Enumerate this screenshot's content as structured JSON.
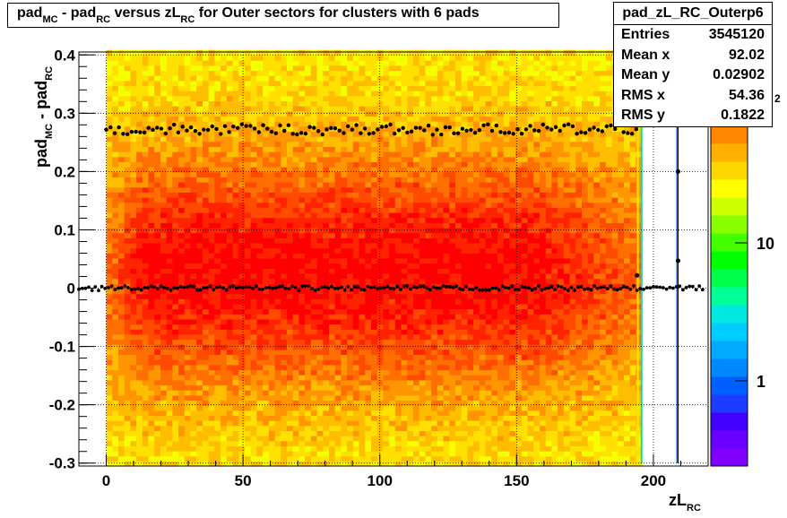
{
  "title": {
    "p1": "pad",
    "s1": "MC",
    "p2": " - pad",
    "s2": "RC",
    "p3": " versus zL",
    "s3": "RC",
    "p4": " for Outer sectors for clusters with 6 pads"
  },
  "stats": {
    "name": "pad_zL_RC_Outerp6",
    "rows": [
      {
        "label": "Entries",
        "value": "3545120"
      },
      {
        "label": "Mean x",
        "value": "92.02"
      },
      {
        "label": "Mean y",
        "value": "0.02902"
      },
      {
        "label": "RMS x",
        "value": "54.36"
      },
      {
        "label": "RMS y",
        "value": "0.1822"
      }
    ]
  },
  "ylabel": {
    "p1": "pad",
    "s1": "MC",
    "p2": " - pad",
    "s2": "RC"
  },
  "xlabel": {
    "p1": "zL",
    "s1": "RC"
  },
  "colors": {
    "profile": "#000000",
    "frame": "#000000"
  },
  "chart_data": {
    "type": "heatmap",
    "x_range": [
      -10,
      220
    ],
    "y_range": [
      -0.305,
      0.405
    ],
    "x_ticks": [
      {
        "v": 0,
        "label": "0"
      },
      {
        "v": 50,
        "label": "50"
      },
      {
        "v": 100,
        "label": "100"
      },
      {
        "v": 150,
        "label": "150"
      },
      {
        "v": 200,
        "label": "200"
      }
    ],
    "y_ticks": [
      {
        "v": -0.3,
        "label": "-0.3"
      },
      {
        "v": -0.2,
        "label": "-0.2"
      },
      {
        "v": -0.1,
        "label": "-0.1"
      },
      {
        "v": 0,
        "label": "0"
      },
      {
        "v": 0.1,
        "label": "0.1"
      },
      {
        "v": 0.2,
        "label": "0.2"
      },
      {
        "v": 0.3,
        "label": "0.3"
      },
      {
        "v": 0.4,
        "label": "0.4"
      }
    ],
    "data_x_extent": [
      0,
      195
    ],
    "edge_x": [
      195,
      209
    ],
    "z_scale": "log",
    "z_ticks": [
      {
        "v": 1,
        "label": "1"
      },
      {
        "v": 10,
        "label": "10"
      }
    ],
    "z_exponent_label": "2",
    "grid": true,
    "profiles": [
      {
        "name": "upper profile",
        "y": 0.272,
        "x_range": [
          0,
          194
        ]
      },
      {
        "name": "central profile",
        "y": 0.0,
        "x_range": [
          -10,
          218
        ]
      }
    ]
  }
}
